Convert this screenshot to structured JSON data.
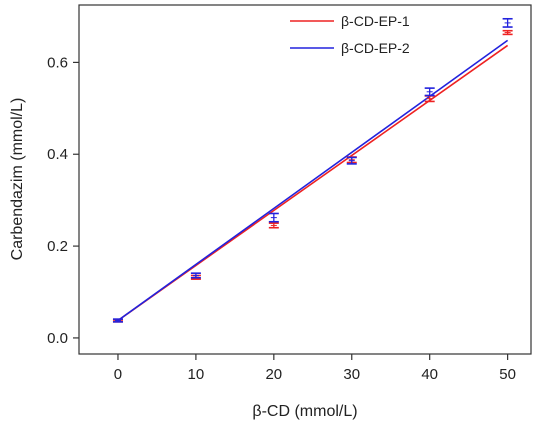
{
  "chart_data": {
    "type": "scatter",
    "xlabel": "β-CD (mmol/L)",
    "ylabel": "Carbendazim (mmol/L)",
    "xlim": [
      -5,
      53
    ],
    "ylim": [
      -0.035,
      0.725
    ],
    "xticks": [
      0,
      10,
      20,
      30,
      40,
      50
    ],
    "xtick_labels": [
      "0",
      "10",
      "20",
      "30",
      "40",
      "50"
    ],
    "yticks": [
      0.0,
      0.2,
      0.4,
      0.6
    ],
    "ytick_labels": [
      "0.0",
      "0.2",
      "0.4",
      "0.6"
    ],
    "grid": false,
    "legend_position": "top-right",
    "series": [
      {
        "name": "β-CD-EP-1",
        "color": "#ee2222",
        "x": [
          0,
          10,
          20,
          30,
          40,
          50
        ],
        "y": [
          0.037,
          0.132,
          0.245,
          0.388,
          0.521,
          0.665
        ],
        "err": [
          0.002,
          0.004,
          0.005,
          0.006,
          0.006,
          0.004
        ],
        "fit": {
          "x": [
            0,
            50
          ],
          "y": [
            0.038,
            0.637
          ]
        }
      },
      {
        "name": "β-CD-EP-2",
        "color": "#2222dd",
        "x": [
          0,
          10,
          20,
          30,
          40,
          50
        ],
        "y": [
          0.038,
          0.136,
          0.262,
          0.386,
          0.536,
          0.686
        ],
        "err": [
          0.003,
          0.005,
          0.009,
          0.007,
          0.008,
          0.009
        ],
        "fit": {
          "x": [
            0,
            50
          ],
          "y": [
            0.038,
            0.648
          ]
        }
      }
    ]
  }
}
